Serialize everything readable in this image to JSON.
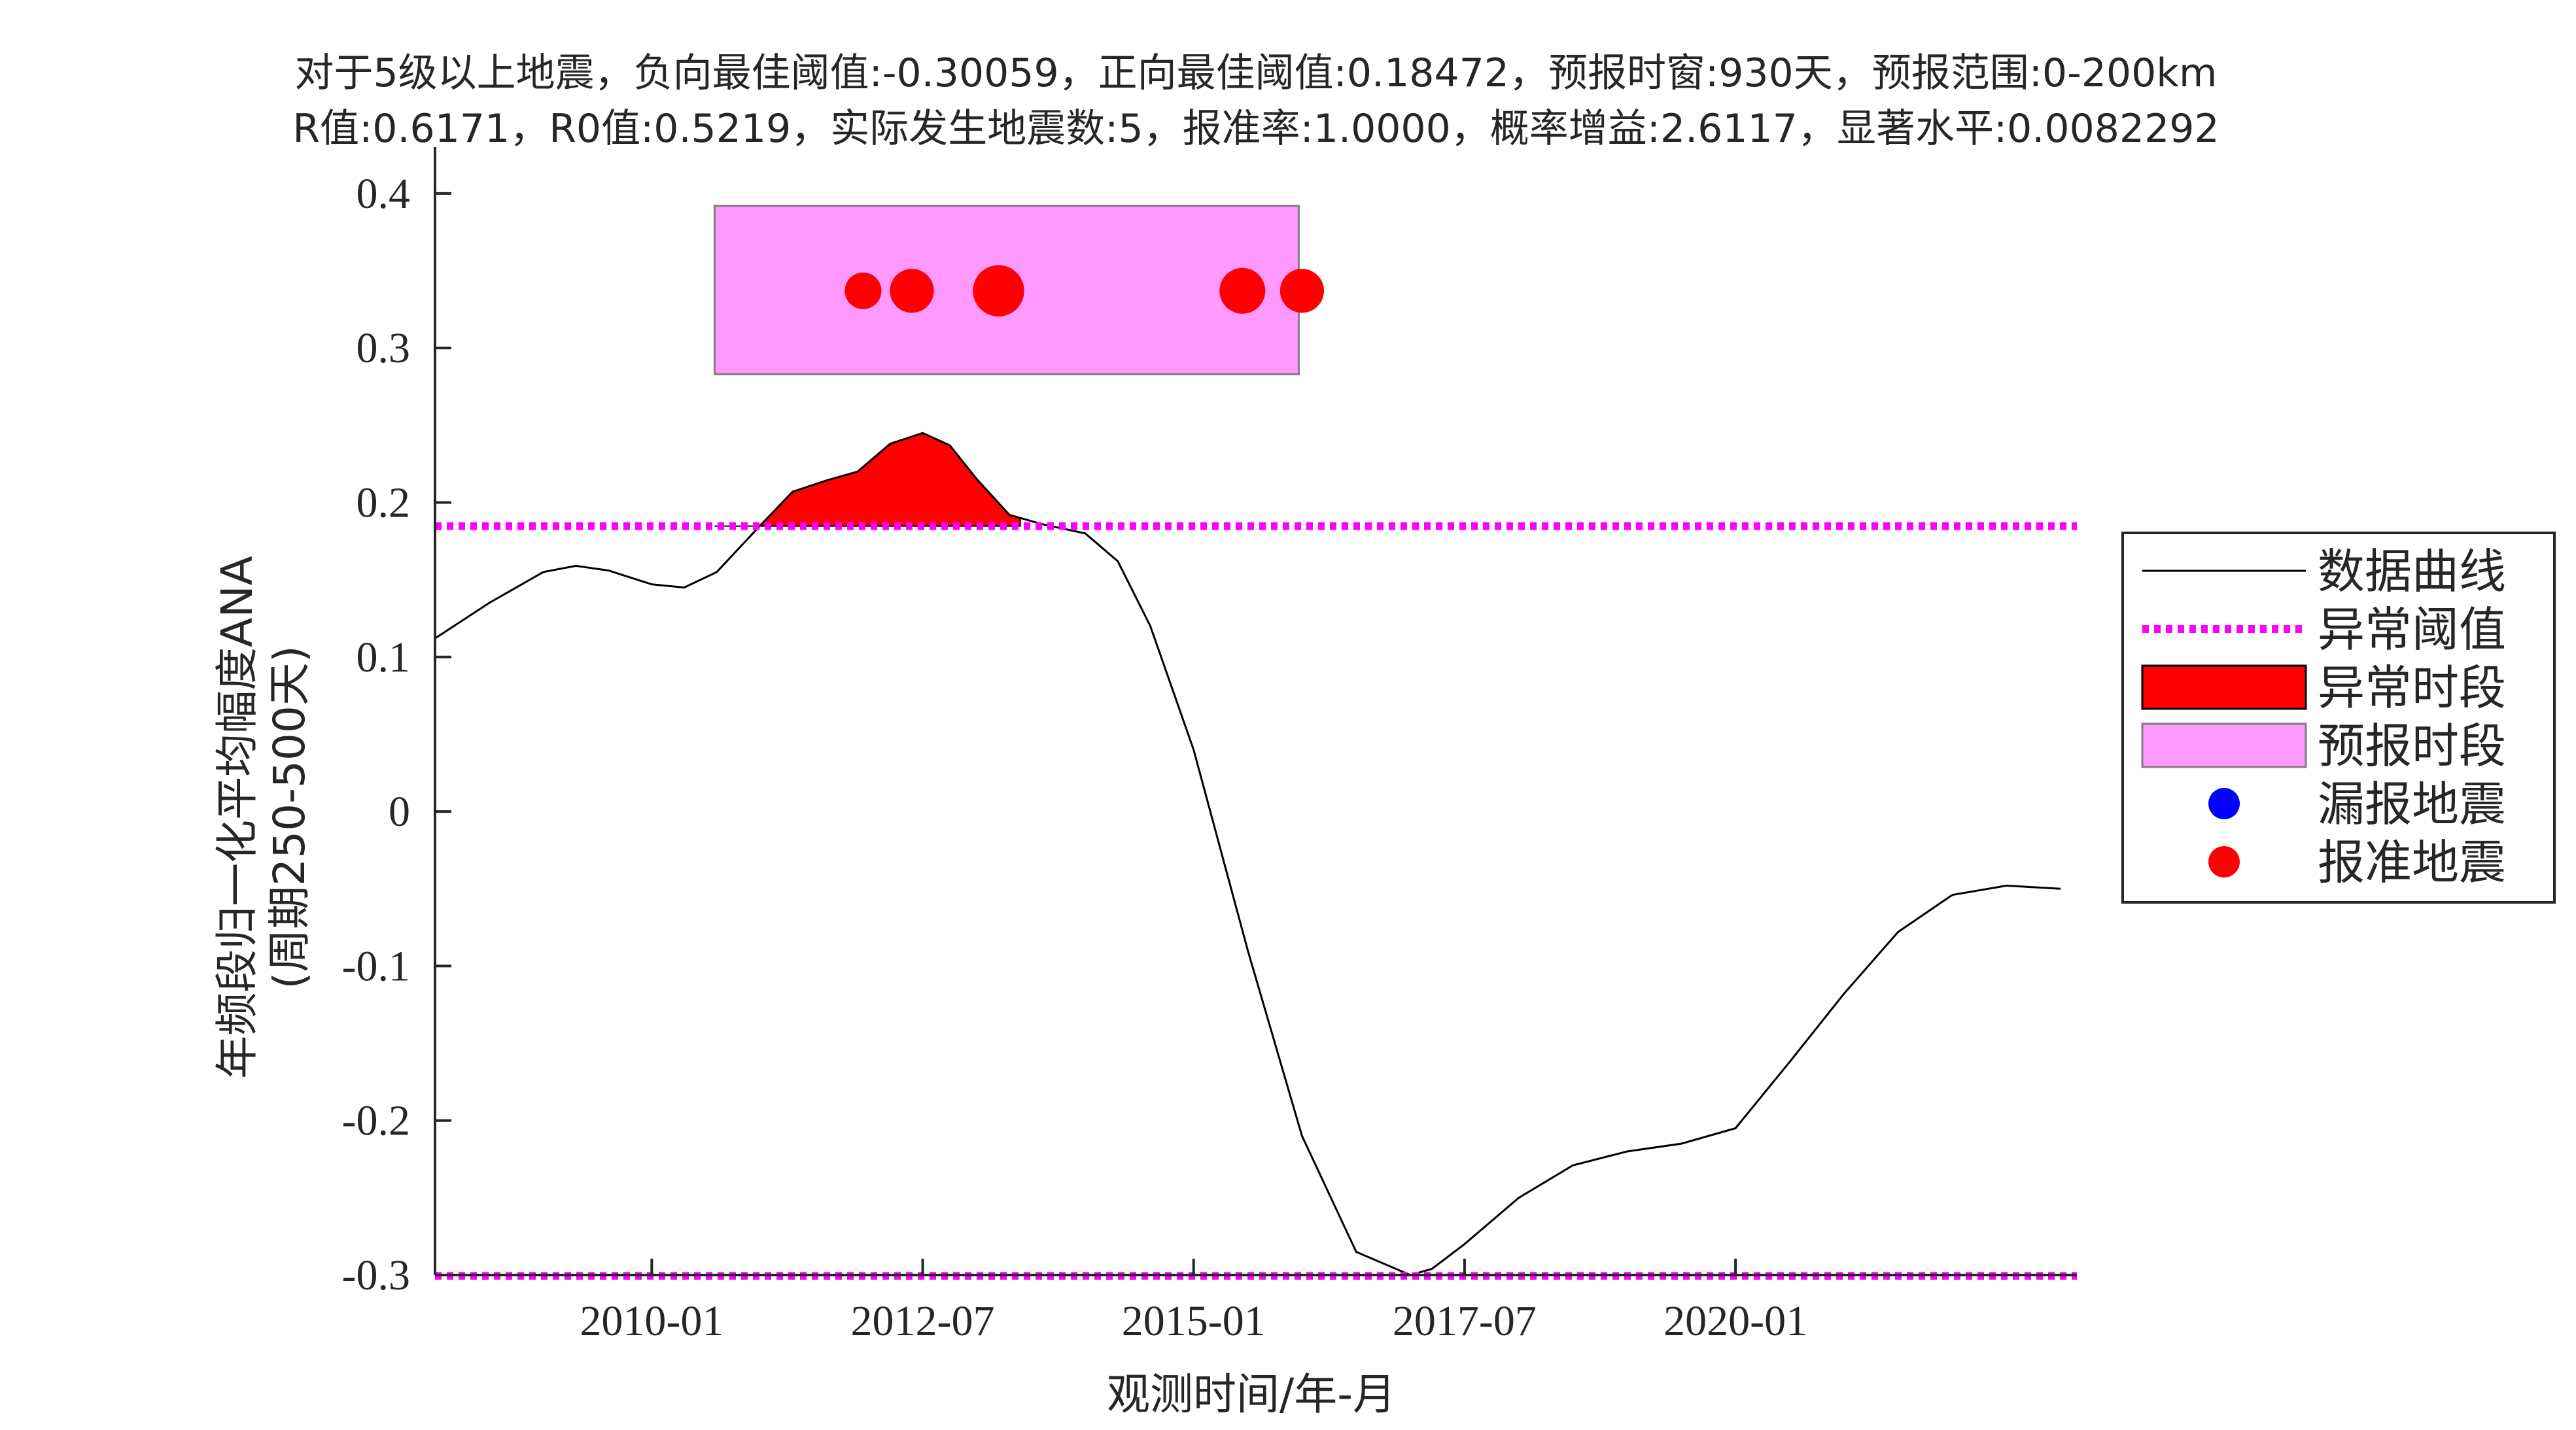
{
  "chart_data": {
    "type": "line",
    "title_line1": "对于5级以上地震，负向最佳阈值:-0.30059，正向最佳阈值:0.18472，预报时窗:930天，预报范围:0-200km",
    "title_line2": "R值:0.6171，R0值:0.5219，实际发生地震数:5，报准率:1.0000，概率增益:2.6117，显著水平:0.0082292",
    "xlabel": "观测时间/年-月",
    "ylabel_line1": "年频段归一化平均幅度ANA",
    "ylabel_line2": "(周期250-500天)",
    "xlim": [
      2008.0,
      2023.15
    ],
    "ylim": [
      -0.3,
      0.43
    ],
    "x_ticks": [
      {
        "label": "2010-01",
        "value": 2010.0
      },
      {
        "label": "2012-07",
        "value": 2012.5
      },
      {
        "label": "2015-01",
        "value": 2015.0
      },
      {
        "label": "2017-07",
        "value": 2017.5
      },
      {
        "label": "2020-01",
        "value": 2020.0
      }
    ],
    "y_ticks": [
      {
        "label": "0.4",
        "value": 0.4
      },
      {
        "label": "0.3",
        "value": 0.3
      },
      {
        "label": "0.2",
        "value": 0.2
      },
      {
        "label": "0.1",
        "value": 0.1
      },
      {
        "label": "0",
        "value": 0.0
      },
      {
        "label": "-0.1",
        "value": -0.1
      },
      {
        "label": "-0.2",
        "value": -0.2
      },
      {
        "label": "-0.3",
        "value": -0.3
      }
    ],
    "thresholds": {
      "positive": 0.18472,
      "negative": -0.30059
    },
    "series": [
      {
        "name": "数据曲线",
        "color": "#000000",
        "x": [
          2008.0,
          2008.5,
          2009.0,
          2009.3,
          2009.6,
          2010.0,
          2010.3,
          2010.6,
          2011.0,
          2011.3,
          2011.6,
          2011.9,
          2012.2,
          2012.5,
          2012.75,
          2013.0,
          2013.3,
          2013.6,
          2014.0,
          2014.3,
          2014.6,
          2015.0,
          2015.5,
          2016.0,
          2016.5,
          2017.0,
          2017.2,
          2017.5,
          2018.0,
          2018.5,
          2019.0,
          2019.5,
          2020.0,
          2020.5,
          2021.0,
          2021.5,
          2022.0,
          2022.5,
          2023.0
        ],
        "y": [
          0.112,
          0.135,
          0.155,
          0.159,
          0.156,
          0.147,
          0.145,
          0.155,
          0.185,
          0.207,
          0.214,
          0.22,
          0.238,
          0.245,
          0.237,
          0.215,
          0.192,
          0.186,
          0.18,
          0.162,
          0.12,
          0.04,
          -0.09,
          -0.21,
          -0.285,
          -0.3,
          -0.296,
          -0.28,
          -0.25,
          -0.229,
          -0.22,
          -0.215,
          -0.205,
          -0.162,
          -0.118,
          -0.078,
          -0.054,
          -0.048,
          -0.05
        ]
      }
    ],
    "anomaly_period": {
      "start": 2010.58,
      "end": 2013.4,
      "label": "异常时段",
      "color": "#ff0000"
    },
    "forecast_period": {
      "start": 2010.58,
      "end": 2015.97,
      "ymin": 0.283,
      "ymax": 0.392,
      "label": "预报时段",
      "color": "#ff99ff"
    },
    "earthquakes_hit": {
      "label": "报准地震",
      "color": "#ff0000",
      "x": [
        2011.95,
        2012.4,
        2013.2,
        2015.45,
        2016.0
      ],
      "y": [
        0.337,
        0.337,
        0.337,
        0.337,
        0.337
      ],
      "size": [
        1,
        1.2,
        1.4,
        1.25,
        1.2
      ]
    },
    "earthquakes_missed": {
      "label": "漏报地震",
      "color": "#0000ff",
      "x": [],
      "y": []
    },
    "legend": {
      "placement": "right",
      "entries": [
        {
          "label": "数据曲线",
          "kind": "line",
          "color": "#000000"
        },
        {
          "label": "异常阈值",
          "kind": "dotted",
          "color": "#ff00ff"
        },
        {
          "label": "异常时段",
          "kind": "patch",
          "color": "#ff0000"
        },
        {
          "label": "预报时段",
          "kind": "patch",
          "color": "#ff99ff"
        },
        {
          "label": "漏报地震",
          "kind": "marker",
          "color": "#0000ff"
        },
        {
          "label": "报准地震",
          "kind": "marker",
          "color": "#ff0000"
        }
      ]
    },
    "threshold_color": "#ff00ff",
    "grid": false
  }
}
